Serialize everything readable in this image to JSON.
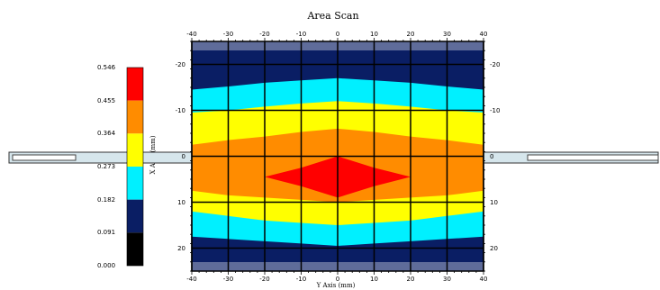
{
  "chart_data": {
    "type": "heatmap",
    "title": "Area Scan",
    "xlabel": "Y Axis (mm)",
    "ylabel": "X Axis (mm)",
    "x_ticks": [
      "-40",
      "-30",
      "-20",
      "-10",
      "0",
      "10",
      "20",
      "30",
      "40"
    ],
    "y_ticks": [
      "-20",
      "-10",
      "0",
      "10",
      "20"
    ],
    "xlim": [
      -40,
      40
    ],
    "ylim": [
      -25,
      25
    ],
    "grid": true,
    "colorbar": {
      "placement": "left",
      "ticks": [
        "0.000",
        "0.091",
        "0.182",
        "0.273",
        "0.364",
        "0.455",
        "0.546"
      ],
      "levels": [
        {
          "from": 0.0,
          "to": 0.091,
          "color": "#000000"
        },
        {
          "from": 0.091,
          "to": 0.182,
          "color": "#0a1e64"
        },
        {
          "from": 0.182,
          "to": 0.273,
          "color": "#00f0ff"
        },
        {
          "from": 0.273,
          "to": 0.364,
          "color": "#ffff00"
        },
        {
          "from": 0.364,
          "to": 0.455,
          "color": "#ff8c00"
        },
        {
          "from": 0.455,
          "to": 0.546,
          "color": "#ff0000"
        }
      ]
    },
    "contours": [
      {
        "level": 0.182,
        "color": "#00f0ff",
        "points": [
          [
            -40,
            -14.5
          ],
          [
            -30,
            -15.2
          ],
          [
            -20,
            -16
          ],
          [
            -10,
            -16.5
          ],
          [
            0,
            -17
          ],
          [
            10,
            -16.5
          ],
          [
            20,
            -16
          ],
          [
            30,
            -15.2
          ],
          [
            40,
            -14.5
          ],
          [
            40,
            17.5
          ],
          [
            30,
            18
          ],
          [
            20,
            18.5
          ],
          [
            10,
            19
          ],
          [
            0,
            19.5
          ],
          [
            -10,
            19
          ],
          [
            -20,
            18.5
          ],
          [
            -30,
            18
          ],
          [
            -40,
            17.5
          ]
        ]
      },
      {
        "level": 0.273,
        "color": "#ffff00",
        "points": [
          [
            -40,
            -9.5
          ],
          [
            -30,
            -10
          ],
          [
            -20,
            -10.8
          ],
          [
            -10,
            -11.5
          ],
          [
            0,
            -12
          ],
          [
            10,
            -11.5
          ],
          [
            20,
            -10.8
          ],
          [
            30,
            -10
          ],
          [
            40,
            -9.5
          ],
          [
            40,
            12
          ],
          [
            30,
            13
          ],
          [
            20,
            14
          ],
          [
            10,
            14.5
          ],
          [
            0,
            15
          ],
          [
            -10,
            14.5
          ],
          [
            -20,
            14
          ],
          [
            -30,
            13
          ],
          [
            -40,
            12
          ]
        ]
      },
      {
        "level": 0.364,
        "color": "#ff8c00",
        "points": [
          [
            -40,
            -2.5
          ],
          [
            -30,
            -3.5
          ],
          [
            -20,
            -4.3
          ],
          [
            -10,
            -5.3
          ],
          [
            0,
            -6
          ],
          [
            10,
            -5.3
          ],
          [
            20,
            -4.3
          ],
          [
            30,
            -3.5
          ],
          [
            40,
            -2.5
          ],
          [
            40,
            7.5
          ],
          [
            30,
            8.5
          ],
          [
            20,
            9
          ],
          [
            10,
            9.5
          ],
          [
            0,
            10
          ],
          [
            -10,
            9.5
          ],
          [
            -20,
            9
          ],
          [
            -30,
            8.5
          ],
          [
            -40,
            7.5
          ]
        ]
      },
      {
        "level": 0.455,
        "color": "#ff0000",
        "points": [
          [
            -20,
            4.5
          ],
          [
            -10,
            2.5
          ],
          [
            0,
            0
          ],
          [
            10,
            2.5
          ],
          [
            20,
            4.5
          ],
          [
            10,
            6.5
          ],
          [
            0,
            9
          ],
          [
            -10,
            6.5
          ]
        ]
      }
    ]
  }
}
